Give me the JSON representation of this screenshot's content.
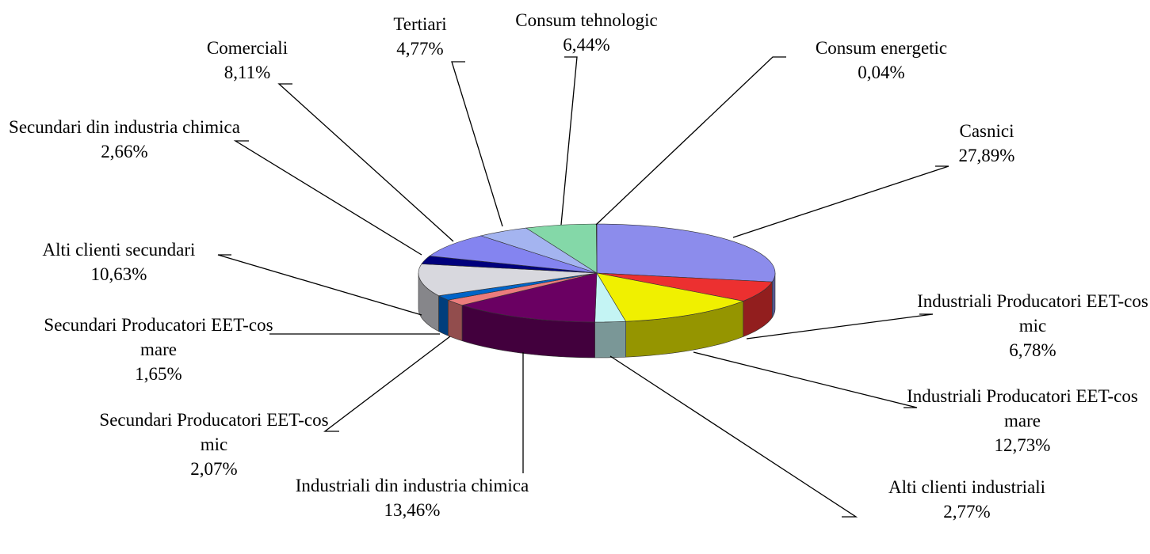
{
  "chart_data": {
    "type": "pie",
    "categories": [
      "Casnici",
      "Industriali Producatori EET-cos mic",
      "Industriali Producatori EET-cos mare",
      "Alti clienti industriali",
      "Industriali din industria chimica",
      "Secundari Producatori EET-cos mic",
      "Secundari Producatori EET-cos mare",
      "Alti clienti secundari",
      "Secundari din industria chimica",
      "Comerciali",
      "Tertiari",
      "Consum tehnologic",
      "Consum energetic"
    ],
    "values": [
      27.89,
      6.78,
      12.73,
      2.77,
      13.46,
      2.07,
      1.65,
      10.63,
      2.66,
      8.11,
      4.77,
      6.44,
      0.04
    ],
    "value_labels": [
      "27,89%",
      "6,78%",
      "12,73%",
      "2,77%",
      "13,46%",
      "2,07%",
      "1,65%",
      "10,63%",
      "2,66%",
      "8,11%",
      "4,77%",
      "6,44%",
      "0,04%"
    ],
    "colors": [
      "#8c8cec",
      "#ec3030",
      "#f0f000",
      "#c4f4f4",
      "#6a0062",
      "#ec7c7c",
      "#0064c8",
      "#d8d8de",
      "#00007c",
      "#8484f0",
      "#a4b4f0",
      "#84d8a8",
      "#c0c0c0"
    ]
  }
}
